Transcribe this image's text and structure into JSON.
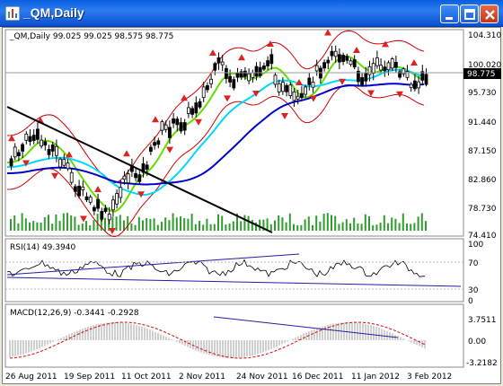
{
  "window": {
    "title": "_QM,Daily"
  },
  "main_panel": {
    "header": "_QM,Daily  99.025 99.025 98.575 98.775",
    "price_labels": [
      "104.310",
      "100.020",
      "95.730",
      "91.440",
      "87.150",
      "82.860",
      "78.730",
      "74.410"
    ],
    "current_price": "98.775"
  },
  "rsi_panel": {
    "header": "RSI(14) 49.3940",
    "levels": [
      "100",
      "70",
      "30",
      "0"
    ]
  },
  "macd_panel": {
    "header": "MACD(12,26,9) -0.3441 -0.2928",
    "levels": [
      "3.7511",
      "0.00",
      "-3.2182"
    ]
  },
  "time_axis": [
    "26 Aug 2011",
    "19 Sep 2011",
    "11 Oct 2011",
    "2 Nov 2011",
    "24 Nov 2011",
    "16 Dec 2011",
    "11 Jan 2012",
    "3 Feb 2012"
  ],
  "colors": {
    "candles": "#000000",
    "bollinger": "#cc0000",
    "ma_fast": "#66dd00",
    "ma_mid": "#00d8ff",
    "ma_slow": "#0000cc",
    "fractals": "#dd2222",
    "volume": "#2f9e2f",
    "macd_hist": "#a0a0a0",
    "macd_signal": "#dd0000"
  }
}
